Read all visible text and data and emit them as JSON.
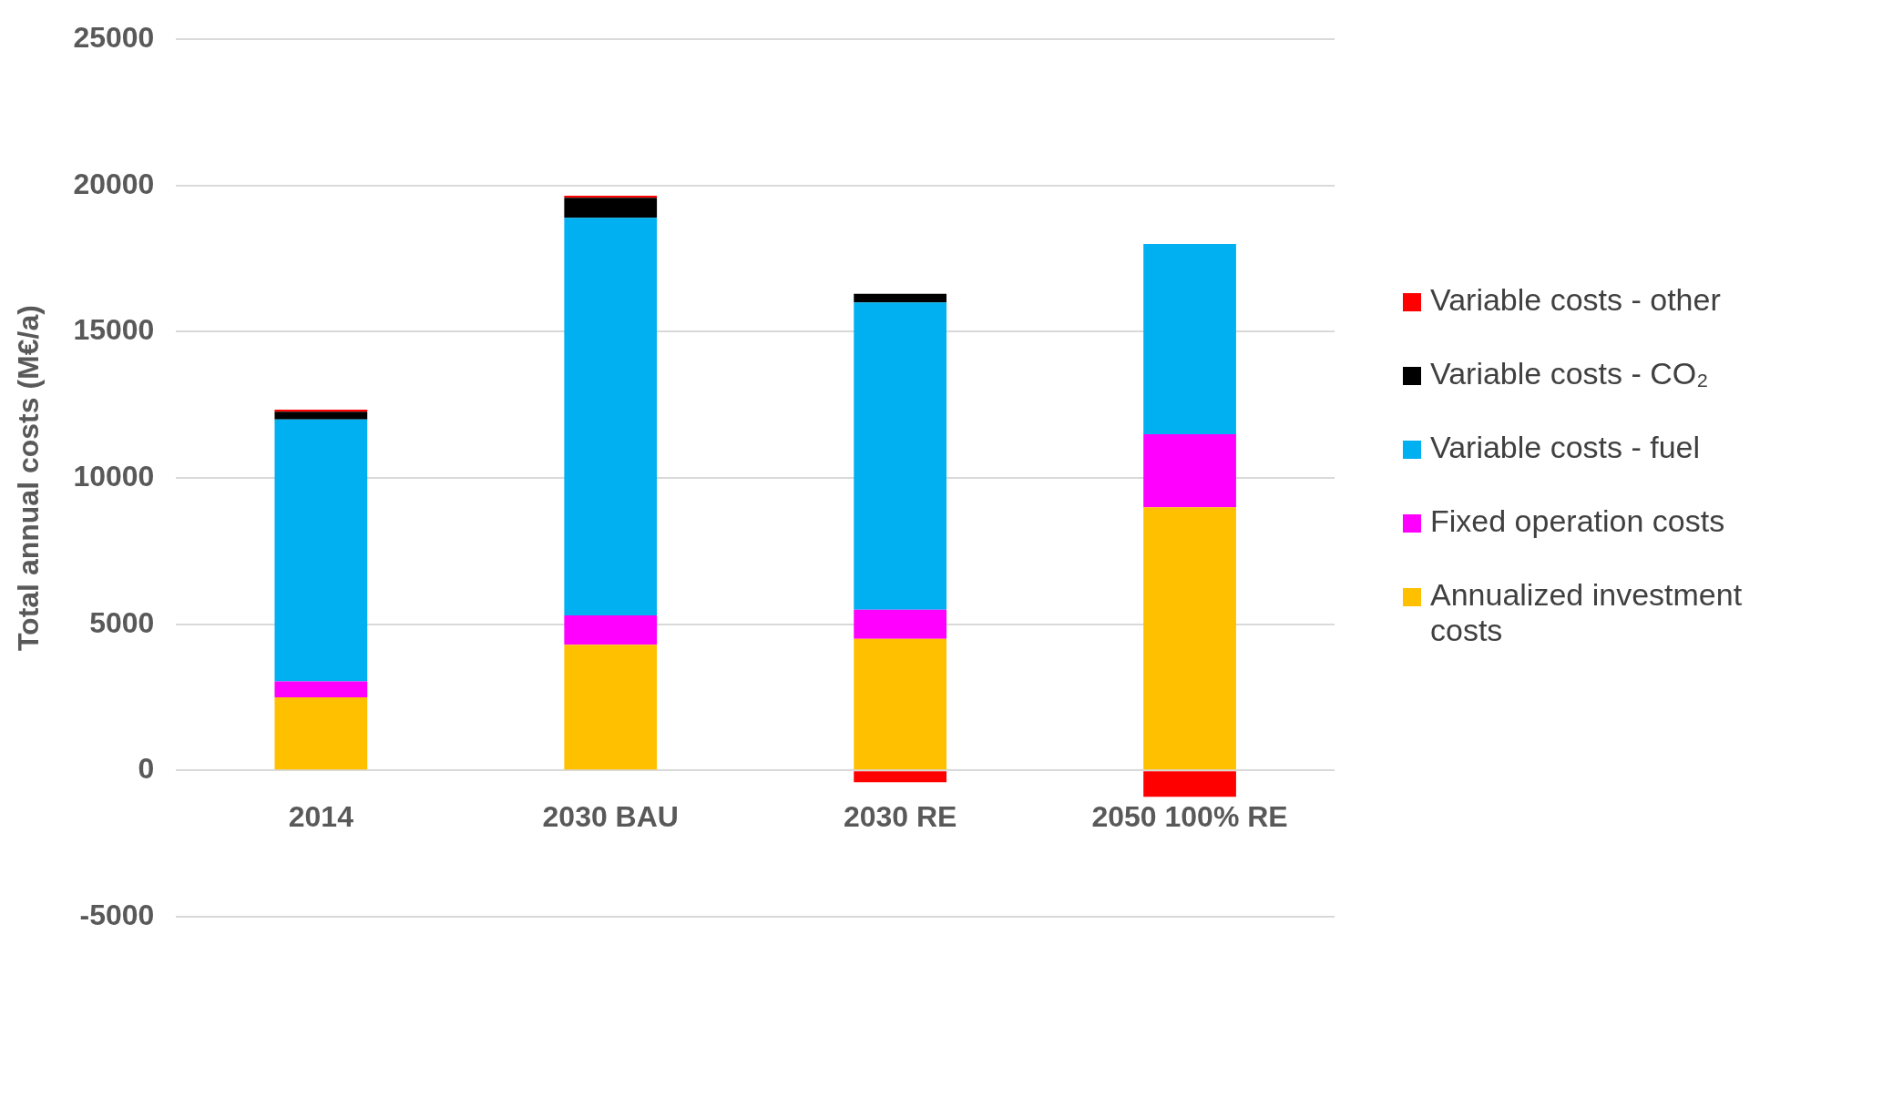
{
  "chart_data": {
    "type": "bar",
    "stacked": true,
    "ylabel": "Total annual costs (M€/a)",
    "categories": [
      "2014",
      "2030 BAU",
      "2030 RE",
      "2050 100% RE"
    ],
    "series": [
      {
        "name": "Annualized investment costs",
        "color": "#ffc000",
        "values": [
          2500,
          4300,
          4500,
          9000
        ]
      },
      {
        "name": "Fixed operation costs",
        "color": "#ff00ff",
        "values": [
          550,
          1000,
          1000,
          2500
        ]
      },
      {
        "name": "Variable costs - fuel",
        "color": "#00b0f0",
        "values": [
          8950,
          13600,
          10500,
          6500
        ]
      },
      {
        "name": "Variable costs - CO₂",
        "color": "#000000",
        "values": [
          270,
          680,
          300,
          0
        ]
      },
      {
        "name": "Variable costs - other",
        "color": "#ff0000",
        "values": [
          70,
          70,
          -400,
          -900
        ]
      }
    ],
    "ylim": [
      -5000,
      25000
    ],
    "yticks": [
      -5000,
      0,
      5000,
      10000,
      15000,
      20000,
      25000
    ],
    "grid": "y",
    "legend": "right"
  }
}
